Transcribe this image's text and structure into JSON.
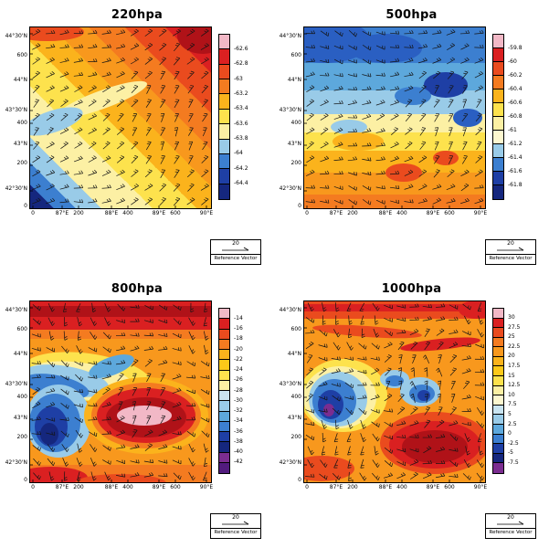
{
  "reference_vector": {
    "value": "20",
    "label": "Reference Vector"
  },
  "axes": {
    "x_ticks": [
      {
        "label": "0",
        "pos": 0.02
      },
      {
        "label": "87°E",
        "pos": 0.18
      },
      {
        "label": "200",
        "pos": 0.27
      },
      {
        "label": "88°E",
        "pos": 0.45
      },
      {
        "label": "400",
        "pos": 0.54
      },
      {
        "label": "89°E",
        "pos": 0.71
      },
      {
        "label": "600",
        "pos": 0.8
      },
      {
        "label": "90°E",
        "pos": 0.97
      }
    ],
    "y_ticks": [
      {
        "label": "44°30'N",
        "pos": 0.04
      },
      {
        "label": "600",
        "pos": 0.15
      },
      {
        "label": "44°N",
        "pos": 0.29
      },
      {
        "label": "43°30'N",
        "pos": 0.46
      },
      {
        "label": "400",
        "pos": 0.53
      },
      {
        "label": "43°N",
        "pos": 0.65
      },
      {
        "label": "200",
        "pos": 0.76
      },
      {
        "label": "42°30'N",
        "pos": 0.9
      },
      {
        "label": "0",
        "pos": 1.0
      }
    ]
  },
  "chart_data": [
    {
      "type": "heatmap",
      "subtype": "filled-contour-with-wind-barbs",
      "title": "220hpa",
      "xlabel": "",
      "ylabel": "",
      "legend_position": "right",
      "colorbar": {
        "labels": [
          "-62.6",
          "-62.8",
          "-63",
          "-63.2",
          "-63.4",
          "-63.6",
          "-63.8",
          "-64",
          "-64.2",
          "-64.4"
        ],
        "colors": [
          "#f2b8c6",
          "#da2021",
          "#ea4b1e",
          "#f47b20",
          "#fbb31c",
          "#fde24d",
          "#fcf0a4",
          "#99cbe8",
          "#3c7fd0",
          "#1e3fa5",
          "#15277e"
        ]
      },
      "field": {
        "gradient": {
          "x1": 0,
          "y1": 1,
          "x2": 1,
          "y2": 0,
          "bands": [
            [
              0,
              0.07,
              "#15277e"
            ],
            [
              0.07,
              0.13,
              "#3c7fd0"
            ],
            [
              0.13,
              0.2,
              "#99cbe8"
            ],
            [
              0.2,
              0.34,
              "#fcf0a4"
            ],
            [
              0.34,
              0.46,
              "#fde24d"
            ],
            [
              0.46,
              0.56,
              "#fbb31c"
            ],
            [
              0.56,
              0.66,
              "#f8981d"
            ],
            [
              0.66,
              0.76,
              "#f47b20"
            ],
            [
              0.76,
              0.87,
              "#ea4b1e"
            ],
            [
              0.87,
              1,
              "#da2021"
            ]
          ]
        },
        "shapes": [
          {
            "t": "e",
            "x": 0.95,
            "y": 0.05,
            "rx": 0.14,
            "ry": 0.1,
            "c": "#b01218"
          },
          {
            "t": "e",
            "x": 0.1,
            "y": 0.03,
            "rx": 0.2,
            "ry": 0.05,
            "c": "#ea4b1e"
          },
          {
            "t": "e",
            "x": 0.4,
            "y": 0.4,
            "rx": 0.26,
            "ry": 0.05,
            "c": "#fcf0a4",
            "rot": -20
          },
          {
            "t": "e",
            "x": 0.13,
            "y": 0.52,
            "rx": 0.17,
            "ry": 0.06,
            "c": "#99cbe8",
            "rot": -18
          }
        ]
      },
      "wind_barbs": {
        "cols": 13,
        "rows": 13,
        "base": -35,
        "ax": 20,
        "ay": 15,
        "fx": 1,
        "fy": 1,
        "jitter": 18
      }
    },
    {
      "type": "heatmap",
      "subtype": "filled-contour-with-wind-barbs",
      "title": "500hpa",
      "xlabel": "",
      "ylabel": "",
      "legend_position": "right",
      "colorbar": {
        "labels": [
          "-59.8",
          "-60",
          "-60.2",
          "-60.4",
          "-60.6",
          "-60.8",
          "-61",
          "-61.2",
          "-61.4",
          "-61.6",
          "-61.8"
        ],
        "colors": [
          "#f2b8c6",
          "#da2021",
          "#ea4b1e",
          "#f47b20",
          "#fbb31c",
          "#fde24d",
          "#fcf0a4",
          "#fdf7cf",
          "#99cbe8",
          "#3c7fd0",
          "#1e3fa5",
          "#15277e"
        ]
      },
      "field": {
        "gradient": {
          "x1": 0,
          "y1": 0,
          "x2": 0,
          "y2": 1,
          "bands": [
            [
              0,
              0.2,
              "#3c7fd0"
            ],
            [
              0.2,
              0.35,
              "#5da8dc"
            ],
            [
              0.35,
              0.48,
              "#99cbe8"
            ],
            [
              0.48,
              0.58,
              "#fcf0a4"
            ],
            [
              0.58,
              0.68,
              "#fde24d"
            ],
            [
              0.68,
              0.8,
              "#fbb31c"
            ],
            [
              0.8,
              0.92,
              "#f8981d"
            ],
            [
              0.92,
              1,
              "#f47b20"
            ]
          ]
        },
        "shapes": [
          {
            "t": "e",
            "x": 0.12,
            "y": 0.08,
            "rx": 0.25,
            "ry": 0.12,
            "c": "#2a5fc2"
          },
          {
            "t": "e",
            "x": 0.45,
            "y": 0.12,
            "rx": 0.2,
            "ry": 0.08,
            "c": "#2a5fc2"
          },
          {
            "t": "e",
            "x": 0.78,
            "y": 0.32,
            "rx": 0.12,
            "ry": 0.07,
            "c": "#1e3fa5"
          },
          {
            "t": "e",
            "x": 0.6,
            "y": 0.38,
            "rx": 0.1,
            "ry": 0.05,
            "c": "#3c7fd0"
          },
          {
            "t": "e",
            "x": 0.9,
            "y": 0.5,
            "rx": 0.08,
            "ry": 0.05,
            "c": "#2a5fc2"
          },
          {
            "t": "e",
            "x": 0.25,
            "y": 0.55,
            "rx": 0.1,
            "ry": 0.04,
            "c": "#99cbe8"
          },
          {
            "t": "e",
            "x": 0.3,
            "y": 0.63,
            "rx": 0.14,
            "ry": 0.05,
            "c": "#fbb31c"
          },
          {
            "t": "e",
            "x": 0.55,
            "y": 0.8,
            "rx": 0.1,
            "ry": 0.05,
            "c": "#ea4b1e"
          },
          {
            "t": "e",
            "x": 0.78,
            "y": 0.72,
            "rx": 0.07,
            "ry": 0.04,
            "c": "#ea4b1e"
          }
        ]
      },
      "wind_barbs": {
        "cols": 13,
        "rows": 13,
        "base": -15,
        "ax": 30,
        "ay": 25,
        "fx": 1,
        "fy": 1,
        "jitter": 25
      }
    },
    {
      "type": "heatmap",
      "subtype": "filled-contour-with-wind-barbs",
      "title": "800hpa",
      "xlabel": "",
      "ylabel": "",
      "legend_position": "right",
      "colorbar": {
        "labels": [
          "-14",
          "-16",
          "-18",
          "-20",
          "-22",
          "-24",
          "-26",
          "-28",
          "-30",
          "-32",
          "-34",
          "-36",
          "-38",
          "-40",
          "-42"
        ],
        "colors": [
          "#f2b8c6",
          "#da2021",
          "#ea4b1e",
          "#f47b20",
          "#fbb31c",
          "#fdc919",
          "#fde24d",
          "#fcf0a4",
          "#c9e4f1",
          "#99cbe8",
          "#5da8dc",
          "#3c7fd0",
          "#1e3fa5",
          "#15277e",
          "#7b2d90",
          "#521b7e"
        ]
      },
      "field": {
        "base": "#f8981d",
        "shapes": [
          {
            "t": "r",
            "x": 0,
            "y": 0,
            "w": 1,
            "h": 0.16,
            "c": "#da2021"
          },
          {
            "t": "r",
            "x": 0,
            "y": 0.03,
            "w": 1,
            "h": 0.06,
            "c": "#b01218"
          },
          {
            "t": "r",
            "x": 0,
            "y": 0.16,
            "w": 1,
            "h": 0.05,
            "c": "#f47b20"
          },
          {
            "t": "e",
            "x": 0.32,
            "y": 0.42,
            "rx": 0.36,
            "ry": 0.13,
            "c": "#fde24d",
            "rot": 8
          },
          {
            "t": "e",
            "x": 0.28,
            "y": 0.44,
            "rx": 0.3,
            "ry": 0.1,
            "c": "#fcf0a4",
            "rot": 8
          },
          {
            "t": "e",
            "x": 0.2,
            "y": 0.44,
            "rx": 0.24,
            "ry": 0.08,
            "c": "#99cbe8",
            "rot": 10
          },
          {
            "t": "e",
            "x": 0.45,
            "y": 0.36,
            "rx": 0.13,
            "ry": 0.05,
            "c": "#5da8dc",
            "rot": -20
          },
          {
            "t": "e",
            "x": 0.15,
            "y": 0.47,
            "rx": 0.18,
            "ry": 0.06,
            "c": "#3c7fd0",
            "rot": 12
          },
          {
            "t": "e",
            "x": 0.16,
            "y": 0.66,
            "rx": 0.18,
            "ry": 0.2,
            "c": "#99cbe8"
          },
          {
            "t": "e",
            "x": 0.14,
            "y": 0.67,
            "rx": 0.14,
            "ry": 0.16,
            "c": "#3c7fd0"
          },
          {
            "t": "e",
            "x": 0.12,
            "y": 0.69,
            "rx": 0.09,
            "ry": 0.11,
            "c": "#1e3fa5"
          },
          {
            "t": "e",
            "x": 0.11,
            "y": 0.73,
            "rx": 0.05,
            "ry": 0.06,
            "c": "#15277e"
          },
          {
            "t": "e",
            "x": 0.64,
            "y": 0.63,
            "rx": 0.34,
            "ry": 0.21,
            "c": "#fbb31c"
          },
          {
            "t": "e",
            "x": 0.64,
            "y": 0.63,
            "rx": 0.3,
            "ry": 0.18,
            "c": "#f47b20"
          },
          {
            "t": "e",
            "x": 0.64,
            "y": 0.63,
            "rx": 0.27,
            "ry": 0.15,
            "c": "#da2021"
          },
          {
            "t": "e",
            "x": 0.64,
            "y": 0.64,
            "rx": 0.22,
            "ry": 0.11,
            "c": "#b01218"
          },
          {
            "t": "e",
            "x": 0.63,
            "y": 0.63,
            "rx": 0.15,
            "ry": 0.055,
            "c": "#f2b8c6"
          },
          {
            "t": "r",
            "x": 0,
            "y": 0.9,
            "w": 1,
            "h": 0.1,
            "c": "#f47b20"
          },
          {
            "t": "e",
            "x": 0.12,
            "y": 0.97,
            "rx": 0.2,
            "ry": 0.06,
            "c": "#da2021"
          },
          {
            "t": "e",
            "x": 0.5,
            "y": 1.0,
            "rx": 0.25,
            "ry": 0.05,
            "c": "#ea4b1e"
          }
        ]
      },
      "wind_barbs": {
        "cols": 13,
        "rows": 13,
        "base": 15,
        "ax": 45,
        "ay": 40,
        "fx": 1.3,
        "fy": 1,
        "jitter": 40
      }
    },
    {
      "type": "heatmap",
      "subtype": "filled-contour-with-wind-barbs",
      "title": "1000hpa",
      "xlabel": "",
      "ylabel": "",
      "legend_position": "right",
      "colorbar": {
        "labels": [
          "30",
          "27.5",
          "25",
          "22.5",
          "20",
          "17.5",
          "15",
          "12.5",
          "10",
          "7.5",
          "5",
          "2.5",
          "0",
          "-2.5",
          "-5",
          "-7.5"
        ],
        "colors": [
          "#f2b8c6",
          "#da2021",
          "#ea4b1e",
          "#f47b20",
          "#f8981d",
          "#fbb31c",
          "#fdc919",
          "#fde24d",
          "#fcf0a4",
          "#fdf7cf",
          "#c9e4f1",
          "#99cbe8",
          "#5da8dc",
          "#3c7fd0",
          "#1e3fa5",
          "#15277e",
          "#7b2d90"
        ]
      },
      "field": {
        "base": "#f8981d",
        "shapes": [
          {
            "t": "r",
            "x": 0,
            "y": 0,
            "w": 1,
            "h": 0.1,
            "c": "#ea4b1e"
          },
          {
            "t": "r",
            "x": 0,
            "y": 0.02,
            "w": 1,
            "h": 0.04,
            "c": "#da2021"
          },
          {
            "t": "e",
            "x": 0.35,
            "y": 0.17,
            "rx": 0.3,
            "ry": 0.03,
            "c": "#ea4b1e",
            "rot": 4
          },
          {
            "t": "e",
            "x": 0.75,
            "y": 0.24,
            "rx": 0.22,
            "ry": 0.03,
            "c": "#da2021",
            "rot": -6
          },
          {
            "t": "e",
            "x": 0.22,
            "y": 0.52,
            "rx": 0.24,
            "ry": 0.2,
            "c": "#fde24d"
          },
          {
            "t": "e",
            "x": 0.2,
            "y": 0.53,
            "rx": 0.2,
            "ry": 0.17,
            "c": "#fcf0a4"
          },
          {
            "t": "e",
            "x": 0.19,
            "y": 0.54,
            "rx": 0.16,
            "ry": 0.15,
            "c": "#99cbe8"
          },
          {
            "t": "e",
            "x": 0.17,
            "y": 0.55,
            "rx": 0.12,
            "ry": 0.12,
            "c": "#3c7fd0"
          },
          {
            "t": "e",
            "x": 0.15,
            "y": 0.57,
            "rx": 0.07,
            "ry": 0.08,
            "c": "#1e3fa5"
          },
          {
            "t": "e",
            "x": 0.14,
            "y": 0.6,
            "rx": 0.03,
            "ry": 0.035,
            "c": "#7b2d90"
          },
          {
            "t": "e",
            "x": 0.5,
            "y": 0.43,
            "rx": 0.08,
            "ry": 0.05,
            "c": "#99cbe8"
          },
          {
            "t": "e",
            "x": 0.5,
            "y": 0.44,
            "rx": 0.05,
            "ry": 0.03,
            "c": "#3c7fd0"
          },
          {
            "t": "e",
            "x": 0.64,
            "y": 0.5,
            "rx": 0.11,
            "ry": 0.08,
            "c": "#99cbe8"
          },
          {
            "t": "e",
            "x": 0.65,
            "y": 0.51,
            "rx": 0.07,
            "ry": 0.05,
            "c": "#3c7fd0"
          },
          {
            "t": "e",
            "x": 0.66,
            "y": 0.52,
            "rx": 0.035,
            "ry": 0.03,
            "c": "#1e3fa5"
          },
          {
            "t": "e",
            "x": 0.72,
            "y": 0.78,
            "rx": 0.3,
            "ry": 0.17,
            "c": "#ea4b1e"
          },
          {
            "t": "e",
            "x": 0.72,
            "y": 0.79,
            "rx": 0.25,
            "ry": 0.13,
            "c": "#da2021"
          },
          {
            "t": "e",
            "x": 0.72,
            "y": 0.8,
            "rx": 0.18,
            "ry": 0.09,
            "c": "#b01218"
          },
          {
            "t": "e",
            "x": 0.1,
            "y": 0.92,
            "rx": 0.18,
            "ry": 0.07,
            "c": "#ea4b1e"
          },
          {
            "t": "e",
            "x": 0.95,
            "y": 0.05,
            "rx": 0.1,
            "ry": 0.05,
            "c": "#da2021"
          }
        ]
      },
      "wind_barbs": {
        "cols": 14,
        "rows": 14,
        "base": 0,
        "ax": 60,
        "ay": 50,
        "fx": 1.2,
        "fy": 1.3,
        "jitter": 50
      }
    }
  ]
}
